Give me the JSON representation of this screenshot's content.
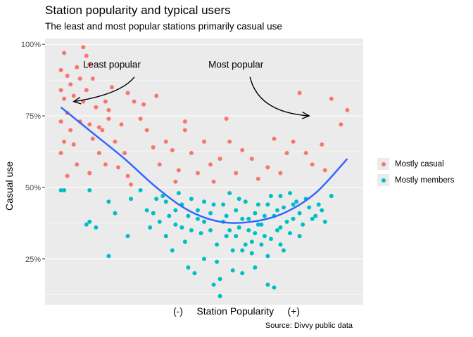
{
  "chart_data": {
    "type": "scatter",
    "title": "Station popularity and typical users",
    "subtitle": "The least and most popular stations primarily casual use",
    "xlabel": "(-)     Station Popularity     (+)",
    "ylabel": "Casual use",
    "caption": "Source: Divvy public data",
    "ylim": [
      0.09,
      1.02
    ],
    "xlim": [
      0,
      1
    ],
    "yticks": [
      {
        "value": 0.25,
        "label": "25%"
      },
      {
        "value": 0.5,
        "label": "50%"
      },
      {
        "value": 0.75,
        "label": "75%"
      },
      {
        "value": 1.0,
        "label": "100%"
      }
    ],
    "grid": true,
    "legend_position": "right",
    "series": [
      {
        "name": "Mostly casual",
        "color": "#F8766D"
      },
      {
        "name": "Mostly members",
        "color": "#00BFC4"
      }
    ],
    "trend": {
      "color": "#3366FF",
      "points": [
        [
          0.05,
          0.78
        ],
        [
          0.15,
          0.69
        ],
        [
          0.25,
          0.6
        ],
        [
          0.35,
          0.5
        ],
        [
          0.45,
          0.42
        ],
        [
          0.55,
          0.38
        ],
        [
          0.65,
          0.38
        ],
        [
          0.75,
          0.41
        ],
        [
          0.85,
          0.48
        ],
        [
          0.95,
          0.6
        ]
      ]
    },
    "annotations": [
      {
        "text": "Least popular",
        "x": 0.21,
        "y": 0.93,
        "arrow_to": [
          0.09,
          0.8
        ]
      },
      {
        "text": "Most popular",
        "x": 0.6,
        "y": 0.93,
        "arrow_to": [
          0.83,
          0.75
        ]
      }
    ],
    "points_casual": [
      [
        0.05,
        0.91
      ],
      [
        0.06,
        0.97
      ],
      [
        0.07,
        0.89
      ],
      [
        0.05,
        0.84
      ],
      [
        0.08,
        0.86
      ],
      [
        0.1,
        0.92
      ],
      [
        0.12,
        0.99
      ],
      [
        0.13,
        0.96
      ],
      [
        0.14,
        0.93
      ],
      [
        0.11,
        0.88
      ],
      [
        0.09,
        0.82
      ],
      [
        0.06,
        0.81
      ],
      [
        0.07,
        0.76
      ],
      [
        0.05,
        0.73
      ],
      [
        0.08,
        0.7
      ],
      [
        0.06,
        0.66
      ],
      [
        0.05,
        0.62
      ],
      [
        0.09,
        0.65
      ],
      [
        0.11,
        0.73
      ],
      [
        0.12,
        0.8
      ],
      [
        0.13,
        0.84
      ],
      [
        0.15,
        0.88
      ],
      [
        0.16,
        0.78
      ],
      [
        0.14,
        0.72
      ],
      [
        0.15,
        0.67
      ],
      [
        0.17,
        0.62
      ],
      [
        0.18,
        0.7
      ],
      [
        0.2,
        0.74
      ],
      [
        0.21,
        0.85
      ],
      [
        0.19,
        0.8
      ],
      [
        0.22,
        0.66
      ],
      [
        0.24,
        0.72
      ],
      [
        0.25,
        0.62
      ],
      [
        0.23,
        0.57
      ],
      [
        0.26,
        0.54
      ],
      [
        0.28,
        0.8
      ],
      [
        0.3,
        0.74
      ],
      [
        0.32,
        0.7
      ],
      [
        0.34,
        0.64
      ],
      [
        0.36,
        0.58
      ],
      [
        0.38,
        0.66
      ],
      [
        0.4,
        0.63
      ],
      [
        0.42,
        0.56
      ],
      [
        0.41,
        0.52
      ],
      [
        0.44,
        0.7
      ],
      [
        0.46,
        0.62
      ],
      [
        0.48,
        0.55
      ],
      [
        0.5,
        0.66
      ],
      [
        0.52,
        0.58
      ],
      [
        0.53,
        0.52
      ],
      [
        0.55,
        0.6
      ],
      [
        0.57,
        0.74
      ],
      [
        0.58,
        0.66
      ],
      [
        0.6,
        0.55
      ],
      [
        0.62,
        0.63
      ],
      [
        0.65,
        0.6
      ],
      [
        0.67,
        0.53
      ],
      [
        0.7,
        0.57
      ],
      [
        0.72,
        0.67
      ],
      [
        0.74,
        0.55
      ],
      [
        0.76,
        0.62
      ],
      [
        0.78,
        0.66
      ],
      [
        0.8,
        0.83
      ],
      [
        0.82,
        0.62
      ],
      [
        0.84,
        0.58
      ],
      [
        0.87,
        0.65
      ],
      [
        0.9,
        0.81
      ],
      [
        0.93,
        0.72
      ],
      [
        0.95,
        0.77
      ],
      [
        0.88,
        0.56
      ],
      [
        0.14,
        0.55
      ],
      [
        0.1,
        0.58
      ],
      [
        0.07,
        0.54
      ],
      [
        0.19,
        0.58
      ],
      [
        0.27,
        0.51
      ],
      [
        0.31,
        0.79
      ],
      [
        0.35,
        0.82
      ],
      [
        0.26,
        0.83
      ],
      [
        0.44,
        0.73
      ],
      [
        0.2,
        0.77
      ],
      [
        0.17,
        0.71
      ]
    ],
    "points_members": [
      [
        0.05,
        0.49
      ],
      [
        0.06,
        0.49
      ],
      [
        0.14,
        0.49
      ],
      [
        0.13,
        0.37
      ],
      [
        0.14,
        0.38
      ],
      [
        0.16,
        0.36
      ],
      [
        0.2,
        0.45
      ],
      [
        0.22,
        0.41
      ],
      [
        0.2,
        0.26
      ],
      [
        0.26,
        0.33
      ],
      [
        0.27,
        0.46
      ],
      [
        0.3,
        0.49
      ],
      [
        0.32,
        0.42
      ],
      [
        0.33,
        0.36
      ],
      [
        0.35,
        0.46
      ],
      [
        0.36,
        0.38
      ],
      [
        0.38,
        0.33
      ],
      [
        0.4,
        0.28
      ],
      [
        0.41,
        0.42
      ],
      [
        0.43,
        0.36
      ],
      [
        0.44,
        0.31
      ],
      [
        0.45,
        0.22
      ],
      [
        0.46,
        0.46
      ],
      [
        0.48,
        0.39
      ],
      [
        0.49,
        0.34
      ],
      [
        0.5,
        0.25
      ],
      [
        0.52,
        0.41
      ],
      [
        0.53,
        0.44
      ],
      [
        0.54,
        0.3
      ],
      [
        0.55,
        0.18
      ],
      [
        0.56,
        0.38
      ],
      [
        0.57,
        0.33
      ],
      [
        0.58,
        0.48
      ],
      [
        0.59,
        0.21
      ],
      [
        0.6,
        0.42
      ],
      [
        0.61,
        0.36
      ],
      [
        0.62,
        0.28
      ],
      [
        0.63,
        0.45
      ],
      [
        0.64,
        0.39
      ],
      [
        0.65,
        0.31
      ],
      [
        0.66,
        0.22
      ],
      [
        0.67,
        0.44
      ],
      [
        0.68,
        0.37
      ],
      [
        0.69,
        0.33
      ],
      [
        0.7,
        0.26
      ],
      [
        0.71,
        0.47
      ],
      [
        0.72,
        0.4
      ],
      [
        0.73,
        0.35
      ],
      [
        0.74,
        0.3
      ],
      [
        0.75,
        0.43
      ],
      [
        0.76,
        0.38
      ],
      [
        0.77,
        0.48
      ],
      [
        0.78,
        0.44
      ],
      [
        0.8,
        0.41
      ],
      [
        0.82,
        0.46
      ],
      [
        0.84,
        0.39
      ],
      [
        0.86,
        0.44
      ],
      [
        0.88,
        0.38
      ],
      [
        0.9,
        0.47
      ],
      [
        0.55,
        0.12
      ],
      [
        0.53,
        0.16
      ],
      [
        0.47,
        0.2
      ],
      [
        0.62,
        0.2
      ],
      [
        0.7,
        0.16
      ],
      [
        0.72,
        0.15
      ],
      [
        0.58,
        0.35
      ],
      [
        0.6,
        0.33
      ],
      [
        0.64,
        0.35
      ],
      [
        0.66,
        0.41
      ],
      [
        0.68,
        0.3
      ],
      [
        0.74,
        0.36
      ],
      [
        0.52,
        0.35
      ],
      [
        0.5,
        0.38
      ],
      [
        0.48,
        0.42
      ],
      [
        0.46,
        0.35
      ],
      [
        0.43,
        0.44
      ],
      [
        0.39,
        0.4
      ],
      [
        0.37,
        0.47
      ],
      [
        0.34,
        0.41
      ],
      [
        0.57,
        0.4
      ],
      [
        0.61,
        0.46
      ],
      [
        0.65,
        0.27
      ],
      [
        0.69,
        0.4
      ],
      [
        0.73,
        0.42
      ],
      [
        0.77,
        0.34
      ],
      [
        0.79,
        0.45
      ],
      [
        0.81,
        0.37
      ],
      [
        0.83,
        0.43
      ],
      [
        0.85,
        0.4
      ],
      [
        0.87,
        0.42
      ],
      [
        0.56,
        0.44
      ],
      [
        0.59,
        0.28
      ],
      [
        0.63,
        0.3
      ],
      [
        0.67,
        0.37
      ],
      [
        0.71,
        0.32
      ],
      [
        0.75,
        0.28
      ],
      [
        0.54,
        0.24
      ],
      [
        0.5,
        0.45
      ],
      [
        0.45,
        0.4
      ],
      [
        0.41,
        0.37
      ],
      [
        0.42,
        0.48
      ],
      [
        0.38,
        0.45
      ],
      [
        0.62,
        0.39
      ],
      [
        0.66,
        0.34
      ],
      [
        0.7,
        0.44
      ],
      [
        0.74,
        0.47
      ],
      [
        0.78,
        0.39
      ],
      [
        0.8,
        0.33
      ]
    ]
  }
}
